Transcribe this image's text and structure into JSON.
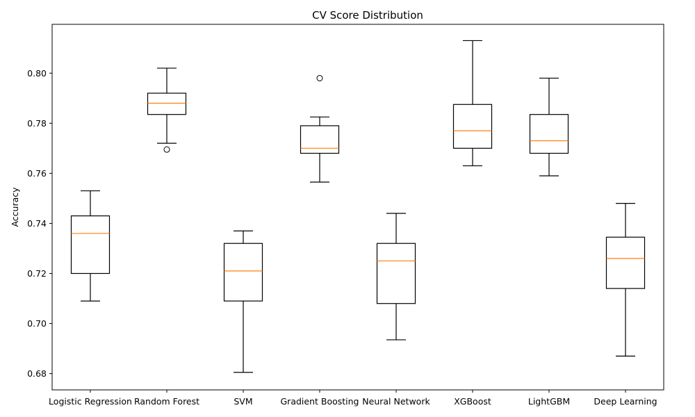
{
  "chart_data": {
    "type": "boxplot",
    "title": "CV Score Distribution",
    "xlabel": "",
    "ylabel": "Accuracy",
    "ylim": [
      0.6735,
      0.8195
    ],
    "yticks": [
      0.68,
      0.7,
      0.72,
      0.74,
      0.76,
      0.78,
      0.8
    ],
    "ytick_labels": [
      "0.68",
      "0.70",
      "0.72",
      "0.74",
      "0.76",
      "0.78",
      "0.80"
    ],
    "grid": false,
    "colors": {
      "box": "#000000",
      "median": "#ff7f0e"
    },
    "categories": [
      "Logistic Regression",
      "Random Forest",
      "SVM",
      "Gradient Boosting",
      "Neural Network",
      "XGBoost",
      "LightGBM",
      "Deep Learning"
    ],
    "boxes": [
      {
        "whisker_low": 0.709,
        "q1": 0.72,
        "median": 0.736,
        "q3": 0.743,
        "whisker_high": 0.753,
        "outliers": []
      },
      {
        "whisker_low": 0.772,
        "q1": 0.7835,
        "median": 0.788,
        "q3": 0.792,
        "whisker_high": 0.802,
        "outliers": [
          0.7695
        ]
      },
      {
        "whisker_low": 0.6805,
        "q1": 0.709,
        "median": 0.721,
        "q3": 0.732,
        "whisker_high": 0.737,
        "outliers": []
      },
      {
        "whisker_low": 0.7565,
        "q1": 0.768,
        "median": 0.77,
        "q3": 0.779,
        "whisker_high": 0.7825,
        "outliers": [
          0.798
        ]
      },
      {
        "whisker_low": 0.6935,
        "q1": 0.708,
        "median": 0.725,
        "q3": 0.732,
        "whisker_high": 0.744,
        "outliers": []
      },
      {
        "whisker_low": 0.763,
        "q1": 0.77,
        "median": 0.777,
        "q3": 0.7875,
        "whisker_high": 0.813,
        "outliers": []
      },
      {
        "whisker_low": 0.759,
        "q1": 0.768,
        "median": 0.773,
        "q3": 0.7835,
        "whisker_high": 0.798,
        "outliers": []
      },
      {
        "whisker_low": 0.687,
        "q1": 0.714,
        "median": 0.726,
        "q3": 0.7345,
        "whisker_high": 0.748,
        "outliers": []
      }
    ]
  }
}
